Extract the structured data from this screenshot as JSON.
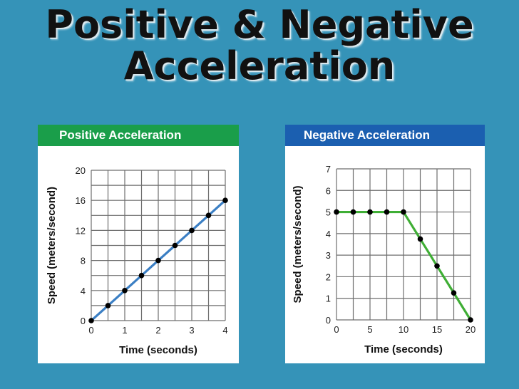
{
  "slide": {
    "title_line1": "Positive & Negative",
    "title_line2": "Acceleration"
  },
  "chart_data": [
    {
      "type": "line",
      "title": "Positive Acceleration",
      "xlabel": "Time (seconds)",
      "ylabel": "Speed (meters/second)",
      "xlim": [
        0,
        4
      ],
      "ylim": [
        0,
        20
      ],
      "x_ticks": [
        0,
        1,
        2,
        3,
        4
      ],
      "y_ticks": [
        0,
        4,
        8,
        12,
        16,
        20
      ],
      "x_grid_step": 0.5,
      "y_grid_step": 2,
      "grid": true,
      "header_color": "#1a9e4a",
      "line_color": "#3b7fc4",
      "x": [
        0,
        0.5,
        1,
        1.5,
        2,
        2.5,
        3,
        3.5,
        4
      ],
      "y": [
        0,
        2,
        4,
        6,
        8,
        10,
        12,
        14,
        16
      ]
    },
    {
      "type": "line",
      "title": "Negative Acceleration",
      "xlabel": "Time (seconds)",
      "ylabel": "Speed (meters/second)",
      "xlim": [
        0,
        20
      ],
      "ylim": [
        0,
        7
      ],
      "x_ticks": [
        0,
        5,
        10,
        15,
        20
      ],
      "y_ticks": [
        0,
        1,
        2,
        3,
        4,
        5,
        6,
        7
      ],
      "x_grid_step": 2.5,
      "y_grid_step": 1,
      "grid": true,
      "header_color": "#1b5fb0",
      "line_color": "#3fae35",
      "x": [
        0,
        2.5,
        5,
        7.5,
        10,
        12.5,
        15,
        17.5,
        20
      ],
      "y": [
        5,
        5,
        5,
        5,
        5,
        3.75,
        2.5,
        1.25,
        0
      ]
    }
  ]
}
